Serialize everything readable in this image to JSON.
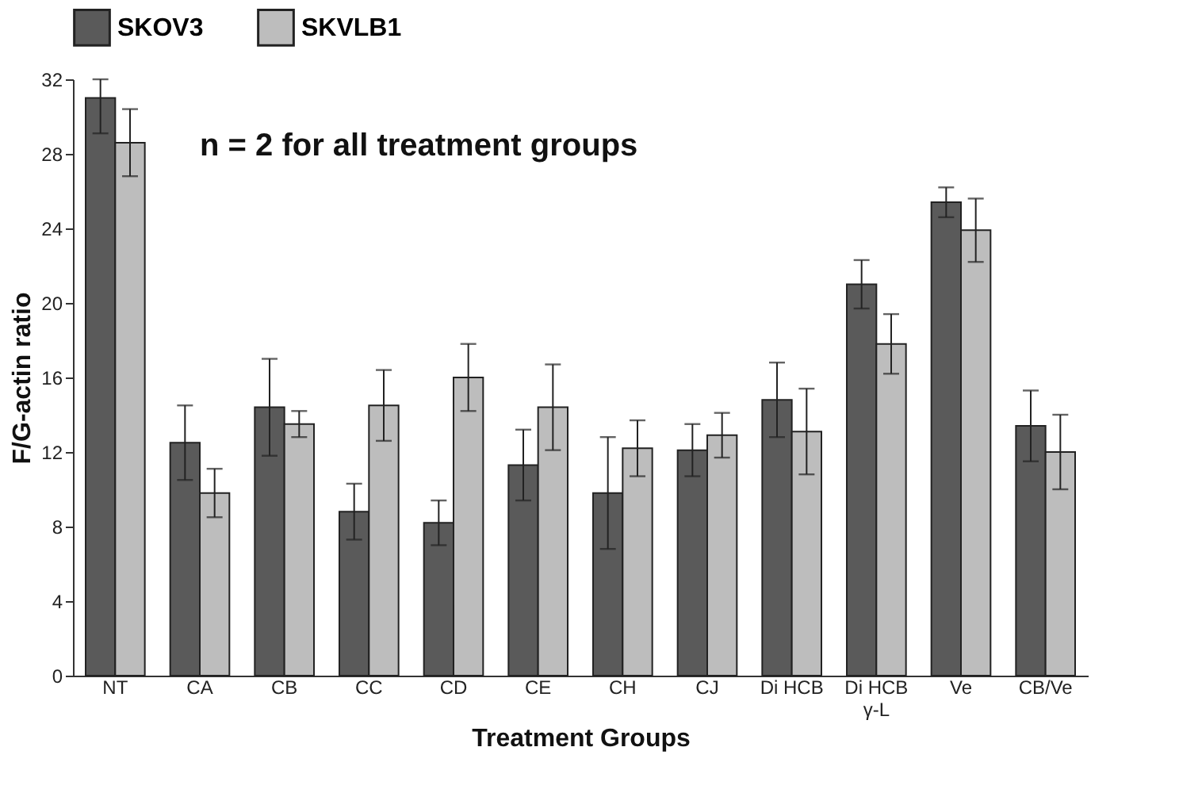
{
  "chart_data": {
    "type": "bar",
    "xlabel": "Treatment Groups",
    "ylabel": "F/G-actin ratio",
    "categories": [
      "NT",
      "CA",
      "CB",
      "CC",
      "CD",
      "CE",
      "CH",
      "CJ",
      "Di HCB",
      "Di HCB\nγ-L",
      "Ve",
      "CB/Ve"
    ],
    "series": [
      {
        "name": "SKOV3",
        "color": "#5a5a5a",
        "values": [
          31,
          12.5,
          14.4,
          8.8,
          8.2,
          11.3,
          9.8,
          12.1,
          14.8,
          21,
          25.4,
          13.4
        ],
        "errors": [
          [
            29.1,
            32
          ],
          2,
          2.6,
          1.5,
          1.2,
          1.9,
          3,
          1.4,
          2,
          1.3,
          0.8,
          1.9
        ]
      },
      {
        "name": "SKVLB1",
        "color": "#bdbdbd",
        "values": [
          28.6,
          9.8,
          13.5,
          14.5,
          16,
          14.4,
          12.2,
          12.9,
          13.1,
          17.8,
          23.9,
          12
        ],
        "errors": [
          1.8,
          1.3,
          0.7,
          1.9,
          1.8,
          2.3,
          1.5,
          1.2,
          2.3,
          1.6,
          1.7,
          2
        ]
      }
    ],
    "ylim": [
      0,
      32
    ],
    "yticks": [
      0,
      4,
      8,
      12,
      16,
      20,
      24,
      28,
      32
    ],
    "annotations": [
      "n = 2 for all treatment groups"
    ],
    "legend": "top",
    "grid": false
  }
}
